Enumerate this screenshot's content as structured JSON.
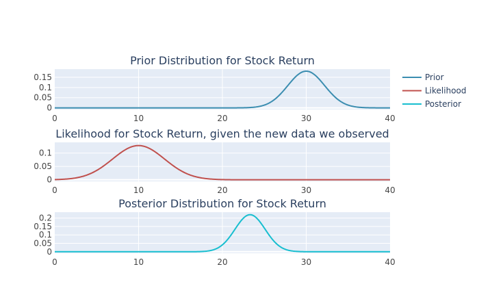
{
  "chart_data": [
    {
      "type": "line",
      "title": "Prior Distribution for Stock Return",
      "xlim": [
        0,
        40
      ],
      "x_ticks": [
        "0",
        "10",
        "20",
        "30",
        "40"
      ],
      "ylim": [
        -0.008,
        0.19
      ],
      "y_ticks": [
        {
          "value": 0,
          "label": "0"
        },
        {
          "value": 0.05,
          "label": "0.05"
        },
        {
          "value": 0.1,
          "label": "0.1"
        },
        {
          "value": 0.15,
          "label": "0.15"
        }
      ],
      "grid": true,
      "series": [
        {
          "name": "Prior",
          "color": "#3b8db0",
          "mean": 30,
          "sd": 2.2,
          "peak": 0.18
        }
      ]
    },
    {
      "type": "line",
      "title": "Likelihood for Stock Return, given the new data we observed",
      "xlim": [
        0,
        40
      ],
      "x_ticks": [
        "0",
        "10",
        "20",
        "30",
        "40"
      ],
      "ylim": [
        -0.006,
        0.14
      ],
      "y_ticks": [
        {
          "value": 0,
          "label": "0"
        },
        {
          "value": 0.05,
          "label": "0.05"
        },
        {
          "value": 0.1,
          "label": "0.1"
        }
      ],
      "grid": true,
      "series": [
        {
          "name": "Likelihood",
          "color": "#c0504d",
          "mean": 10,
          "sd": 3.1,
          "peak": 0.128
        }
      ]
    },
    {
      "type": "line",
      "title": "Posterior Distribution for Stock Return",
      "xlim": [
        0,
        40
      ],
      "x_ticks": [
        "0",
        "10",
        "20",
        "30",
        "40"
      ],
      "ylim": [
        -0.009,
        0.235
      ],
      "y_ticks": [
        {
          "value": 0,
          "label": "0"
        },
        {
          "value": 0.05,
          "label": "0.05"
        },
        {
          "value": 0.1,
          "label": "0.1"
        },
        {
          "value": 0.15,
          "label": "0.15"
        },
        {
          "value": 0.2,
          "label": "0.2"
        }
      ],
      "grid": true,
      "series": [
        {
          "name": "Posterior",
          "color": "#17becf",
          "mean": 23.3,
          "sd": 1.8,
          "peak": 0.22
        }
      ]
    }
  ],
  "legend": {
    "position": "top-right",
    "items": [
      {
        "label": "Prior",
        "color": "#3b8db0"
      },
      {
        "label": "Likelihood",
        "color": "#c0504d"
      },
      {
        "label": "Posterior",
        "color": "#17becf"
      }
    ]
  }
}
